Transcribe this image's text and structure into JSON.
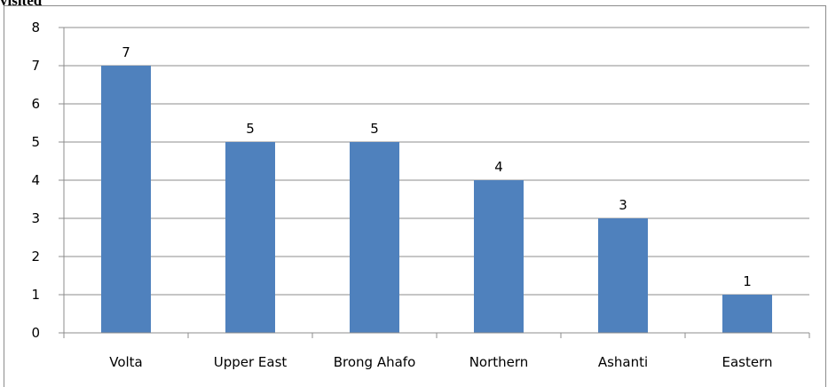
{
  "document": {
    "caption_fragment": "visited"
  },
  "chart_data": {
    "type": "bar",
    "categories": [
      "Volta",
      "Upper East",
      "Brong Ahafo",
      "Northern",
      "Ashanti",
      "Eastern"
    ],
    "values": [
      7,
      5,
      5,
      4,
      3,
      1
    ],
    "title": "",
    "xlabel": "",
    "ylabel": "",
    "ylim": [
      0,
      8
    ],
    "yticks": [
      "0",
      "1",
      "2",
      "3",
      "4",
      "5",
      "6",
      "7",
      "8"
    ],
    "grid": true,
    "legend": "none",
    "bar_color": "#4f81bd",
    "grid_color": "#8c8c8c"
  }
}
